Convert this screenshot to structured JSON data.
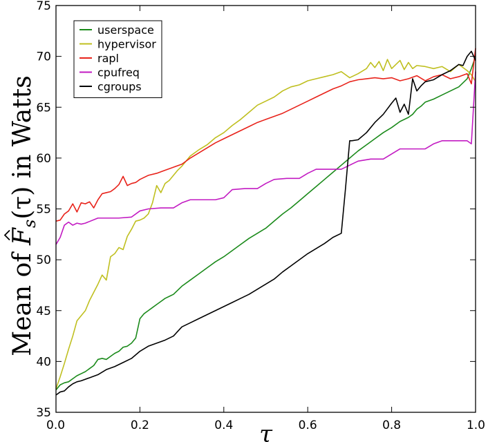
{
  "chart_data": {
    "type": "line",
    "xlabel": "τ",
    "ylabel_prefix": "Mean of ",
    "ylabel_math_base": "F",
    "ylabel_math_sub": "s",
    "ylabel_math_arg": "(τ)",
    "ylabel_suffix": " in Watts",
    "xlim": [
      0.0,
      1.0
    ],
    "ylim": [
      35,
      75
    ],
    "xticks": [
      "0.0",
      "0.2",
      "0.4",
      "0.6",
      "0.8",
      "1.0"
    ],
    "yticks": [
      "35",
      "40",
      "45",
      "50",
      "55",
      "60",
      "65",
      "70",
      "75"
    ],
    "grid": false,
    "legend_position": "top-left",
    "series": [
      {
        "name": "userspace",
        "color": "#1a8a1a",
        "x": [
          0,
          0.01,
          0.02,
          0.03,
          0.04,
          0.05,
          0.06,
          0.07,
          0.08,
          0.09,
          0.1,
          0.11,
          0.12,
          0.13,
          0.14,
          0.15,
          0.16,
          0.17,
          0.18,
          0.19,
          0.2,
          0.21,
          0.22,
          0.23,
          0.24,
          0.25,
          0.26,
          0.27,
          0.28,
          0.29,
          0.3,
          0.32,
          0.34,
          0.36,
          0.38,
          0.4,
          0.42,
          0.44,
          0.46,
          0.48,
          0.5,
          0.52,
          0.54,
          0.56,
          0.58,
          0.6,
          0.62,
          0.64,
          0.66,
          0.68,
          0.7,
          0.72,
          0.74,
          0.76,
          0.78,
          0.8,
          0.82,
          0.84,
          0.85,
          0.86,
          0.87,
          0.88,
          0.9,
          0.92,
          0.94,
          0.96,
          0.98,
          0.99,
          1.0
        ],
        "y": [
          37.2,
          37.7,
          37.9,
          38.0,
          38.3,
          38.6,
          38.8,
          39.0,
          39.3,
          39.6,
          40.2,
          40.3,
          40.2,
          40.5,
          40.8,
          41.0,
          41.4,
          41.5,
          41.8,
          42.3,
          44.2,
          44.7,
          45.0,
          45.3,
          45.6,
          45.9,
          46.2,
          46.4,
          46.6,
          47.0,
          47.4,
          48.0,
          48.6,
          49.2,
          49.8,
          50.3,
          50.9,
          51.5,
          52.1,
          52.6,
          53.1,
          53.8,
          54.5,
          55.1,
          55.8,
          56.5,
          57.2,
          57.9,
          58.6,
          59.3,
          60.0,
          60.7,
          61.3,
          61.9,
          62.5,
          63.0,
          63.6,
          64.0,
          64.3,
          64.8,
          65.1,
          65.5,
          65.8,
          66.2,
          66.6,
          67.0,
          67.8,
          68.8,
          70.0
        ]
      },
      {
        "name": "hypervisor",
        "color": "#bfbf1f",
        "x": [
          0,
          0.01,
          0.02,
          0.03,
          0.04,
          0.05,
          0.06,
          0.07,
          0.08,
          0.09,
          0.1,
          0.11,
          0.12,
          0.13,
          0.14,
          0.15,
          0.16,
          0.17,
          0.18,
          0.19,
          0.2,
          0.21,
          0.22,
          0.23,
          0.24,
          0.25,
          0.26,
          0.27,
          0.28,
          0.29,
          0.3,
          0.32,
          0.34,
          0.36,
          0.38,
          0.4,
          0.42,
          0.44,
          0.46,
          0.48,
          0.5,
          0.52,
          0.54,
          0.56,
          0.58,
          0.6,
          0.62,
          0.64,
          0.66,
          0.68,
          0.7,
          0.72,
          0.74,
          0.75,
          0.76,
          0.77,
          0.78,
          0.79,
          0.8,
          0.81,
          0.82,
          0.83,
          0.84,
          0.85,
          0.86,
          0.88,
          0.9,
          0.92,
          0.94,
          0.96,
          0.98,
          0.99,
          1.0
        ],
        "y": [
          37.3,
          38.5,
          39.8,
          41.2,
          42.5,
          44.0,
          44.5,
          45.0,
          46.0,
          46.8,
          47.6,
          48.5,
          48.0,
          50.3,
          50.6,
          51.2,
          51.0,
          52.3,
          53.0,
          53.8,
          53.9,
          54.1,
          54.5,
          55.6,
          57.3,
          56.6,
          57.5,
          57.8,
          58.3,
          58.8,
          59.2,
          60.2,
          60.8,
          61.3,
          62.0,
          62.5,
          63.2,
          63.8,
          64.5,
          65.2,
          65.6,
          66.0,
          66.6,
          67.0,
          67.2,
          67.6,
          67.8,
          68.0,
          68.2,
          68.5,
          67.9,
          68.3,
          68.8,
          69.4,
          68.9,
          69.5,
          68.6,
          69.7,
          68.8,
          69.2,
          69.6,
          68.7,
          69.4,
          68.8,
          69.1,
          69.0,
          68.8,
          69.0,
          68.5,
          69.2,
          68.6,
          68.2,
          67.5
        ]
      },
      {
        "name": "rapl",
        "color": "#e8221a",
        "x": [
          0,
          0.01,
          0.02,
          0.03,
          0.04,
          0.05,
          0.06,
          0.07,
          0.08,
          0.09,
          0.1,
          0.11,
          0.12,
          0.13,
          0.14,
          0.15,
          0.16,
          0.17,
          0.18,
          0.19,
          0.2,
          0.22,
          0.24,
          0.26,
          0.28,
          0.3,
          0.32,
          0.34,
          0.36,
          0.38,
          0.4,
          0.42,
          0.44,
          0.46,
          0.48,
          0.5,
          0.52,
          0.54,
          0.56,
          0.58,
          0.6,
          0.62,
          0.64,
          0.66,
          0.68,
          0.7,
          0.72,
          0.74,
          0.76,
          0.78,
          0.8,
          0.82,
          0.84,
          0.86,
          0.88,
          0.9,
          0.92,
          0.94,
          0.96,
          0.98,
          0.99,
          1.0
        ],
        "y": [
          53.8,
          53.9,
          54.5,
          54.8,
          55.5,
          54.7,
          55.6,
          55.5,
          55.7,
          55.1,
          55.9,
          56.5,
          56.6,
          56.7,
          57.0,
          57.4,
          58.2,
          57.3,
          57.5,
          57.6,
          57.9,
          58.3,
          58.5,
          58.8,
          59.1,
          59.4,
          60.0,
          60.5,
          61.0,
          61.5,
          61.9,
          62.3,
          62.7,
          63.1,
          63.5,
          63.8,
          64.1,
          64.4,
          64.8,
          65.2,
          65.6,
          66.0,
          66.4,
          66.8,
          67.1,
          67.5,
          67.7,
          67.8,
          67.9,
          67.8,
          67.9,
          67.6,
          67.8,
          68.1,
          67.6,
          68.0,
          68.2,
          67.8,
          68.0,
          68.3,
          67.3,
          70.8
        ]
      },
      {
        "name": "cpufreq",
        "color": "#c21ac2",
        "x": [
          0,
          0.01,
          0.02,
          0.03,
          0.04,
          0.05,
          0.06,
          0.07,
          0.1,
          0.12,
          0.15,
          0.18,
          0.2,
          0.22,
          0.25,
          0.28,
          0.3,
          0.32,
          0.35,
          0.38,
          0.4,
          0.42,
          0.45,
          0.48,
          0.5,
          0.52,
          0.55,
          0.58,
          0.6,
          0.62,
          0.65,
          0.68,
          0.7,
          0.72,
          0.75,
          0.78,
          0.8,
          0.82,
          0.85,
          0.88,
          0.9,
          0.92,
          0.95,
          0.98,
          0.99,
          1.0
        ],
        "y": [
          51.5,
          52.2,
          53.4,
          53.7,
          53.4,
          53.6,
          53.5,
          53.6,
          54.1,
          54.1,
          54.1,
          54.2,
          54.8,
          55.0,
          55.1,
          55.1,
          55.6,
          55.9,
          55.9,
          55.9,
          56.1,
          56.9,
          57.0,
          57.0,
          57.5,
          57.9,
          58.0,
          58.0,
          58.5,
          58.9,
          58.9,
          58.9,
          59.3,
          59.7,
          59.9,
          59.9,
          60.4,
          60.9,
          60.9,
          60.9,
          61.4,
          61.7,
          61.7,
          61.7,
          61.4,
          68.5
        ]
      },
      {
        "name": "cgroups",
        "color": "#000000",
        "x": [
          0,
          0.01,
          0.02,
          0.03,
          0.04,
          0.05,
          0.06,
          0.08,
          0.1,
          0.12,
          0.14,
          0.16,
          0.18,
          0.2,
          0.22,
          0.24,
          0.26,
          0.28,
          0.3,
          0.32,
          0.34,
          0.36,
          0.38,
          0.4,
          0.42,
          0.44,
          0.46,
          0.48,
          0.5,
          0.52,
          0.54,
          0.56,
          0.58,
          0.6,
          0.62,
          0.64,
          0.66,
          0.68,
          0.69,
          0.7,
          0.705,
          0.72,
          0.74,
          0.76,
          0.78,
          0.8,
          0.81,
          0.82,
          0.83,
          0.84,
          0.85,
          0.86,
          0.87,
          0.88,
          0.9,
          0.92,
          0.94,
          0.96,
          0.97,
          0.98,
          0.99,
          1.0
        ],
        "y": [
          36.7,
          37.0,
          37.1,
          37.5,
          37.8,
          38.0,
          38.1,
          38.4,
          38.7,
          39.2,
          39.5,
          39.9,
          40.3,
          41.0,
          41.5,
          41.8,
          42.1,
          42.5,
          43.4,
          43.8,
          44.2,
          44.6,
          45.0,
          45.4,
          45.8,
          46.2,
          46.6,
          47.1,
          47.6,
          48.1,
          48.8,
          49.4,
          50.0,
          50.6,
          51.1,
          51.6,
          52.2,
          52.6,
          57.0,
          61.7,
          61.7,
          61.8,
          62.5,
          63.5,
          64.3,
          65.4,
          65.9,
          64.5,
          65.3,
          64.3,
          67.8,
          66.6,
          67.1,
          67.5,
          67.7,
          68.2,
          68.6,
          69.2,
          69.1,
          70.0,
          70.5,
          69.6
        ]
      }
    ]
  }
}
